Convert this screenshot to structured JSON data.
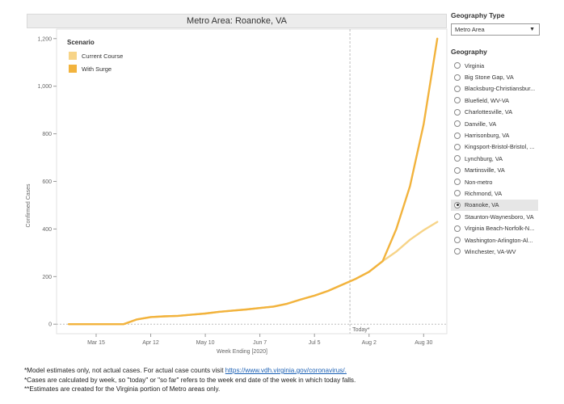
{
  "chart_data": {
    "type": "line",
    "title": "Metro Area: Roanoke, VA",
    "xlabel": "Week Ending [2020]",
    "ylabel": "Confirmed Cases",
    "ylim": [
      -40,
      1240
    ],
    "yticks": [
      0,
      200,
      400,
      600,
      800,
      1000,
      1200
    ],
    "ytick_labels": [
      "0",
      "200",
      "400",
      "600",
      "800",
      "1,000",
      "1,200"
    ],
    "x_ticks": [
      {
        "week": 2,
        "label": "Mar 15"
      },
      {
        "week": 6,
        "label": "Apr 12"
      },
      {
        "week": 10,
        "label": "May 10"
      },
      {
        "week": 14,
        "label": "Jun 7"
      },
      {
        "week": 18,
        "label": "Jul 5"
      },
      {
        "week": 22,
        "label": "Aug 2"
      },
      {
        "week": 26,
        "label": "Aug 30"
      }
    ],
    "xlim": [
      -0.9,
      27.7
    ],
    "today_week": 20.6,
    "today_label": "Today*",
    "legend_title": "Scenario",
    "legend_placement": "top-left",
    "grid": false,
    "series": [
      {
        "name": "Current Course",
        "color": "#f7d488",
        "x": [
          0,
          1,
          2,
          3,
          4,
          5,
          6,
          7,
          8,
          9,
          10,
          11,
          12,
          13,
          14,
          15,
          16,
          17,
          18,
          19,
          20,
          21,
          22,
          23,
          24,
          25,
          26,
          27
        ],
        "values": [
          0,
          0,
          0,
          0,
          0,
          20,
          30,
          33,
          35,
          40,
          45,
          52,
          57,
          62,
          68,
          74,
          86,
          104,
          120,
          140,
          165,
          190,
          220,
          265,
          305,
          355,
          395,
          430
        ]
      },
      {
        "name": "With Surge",
        "color": "#f2b33d",
        "x": [
          0,
          1,
          2,
          3,
          4,
          5,
          6,
          7,
          8,
          9,
          10,
          11,
          12,
          13,
          14,
          15,
          16,
          17,
          18,
          19,
          20,
          21,
          22,
          23,
          24,
          25,
          26,
          27
        ],
        "values": [
          0,
          0,
          0,
          0,
          0,
          20,
          30,
          33,
          35,
          40,
          45,
          52,
          57,
          62,
          68,
          74,
          86,
          104,
          120,
          140,
          165,
          190,
          220,
          265,
          400,
          580,
          840,
          1200
        ]
      }
    ]
  },
  "side": {
    "geo_type_heading": "Geography Type",
    "geo_type_value": "Metro Area",
    "geo_heading": "Geography",
    "geo_items": [
      "Virginia",
      "Big Stone Gap, VA",
      "Blacksburg-Christiansbur...",
      "Bluefield, WV-VA",
      "Charlottesville, VA",
      "Danville, VA",
      "Harrisonburg, VA",
      "Kingsport-Bristol-Bristol, ...",
      "Lynchburg, VA",
      "Martinsville, VA",
      "Non-metro",
      "Richmond, VA",
      "Roanoke, VA",
      "Staunton-Waynesboro, VA",
      "Virginia Beach-Norfolk-N...",
      "Washington-Arlington-Al...",
      "Winchester, VA-WV"
    ],
    "selected_index": 12
  },
  "footnotes": {
    "line1_prefix": "*Model estimates only, not actual cases. For actual case counts visit ",
    "line1_link": "https://www.vdh.virginia.gov/coronavirus/.",
    "line2": "*Cases are calculated by week, so \"today\" or \"so far\" refers to the week end date of the week in which today falls.",
    "line3": "**Estimates are created for the Virginia portion of Metro areas only."
  }
}
